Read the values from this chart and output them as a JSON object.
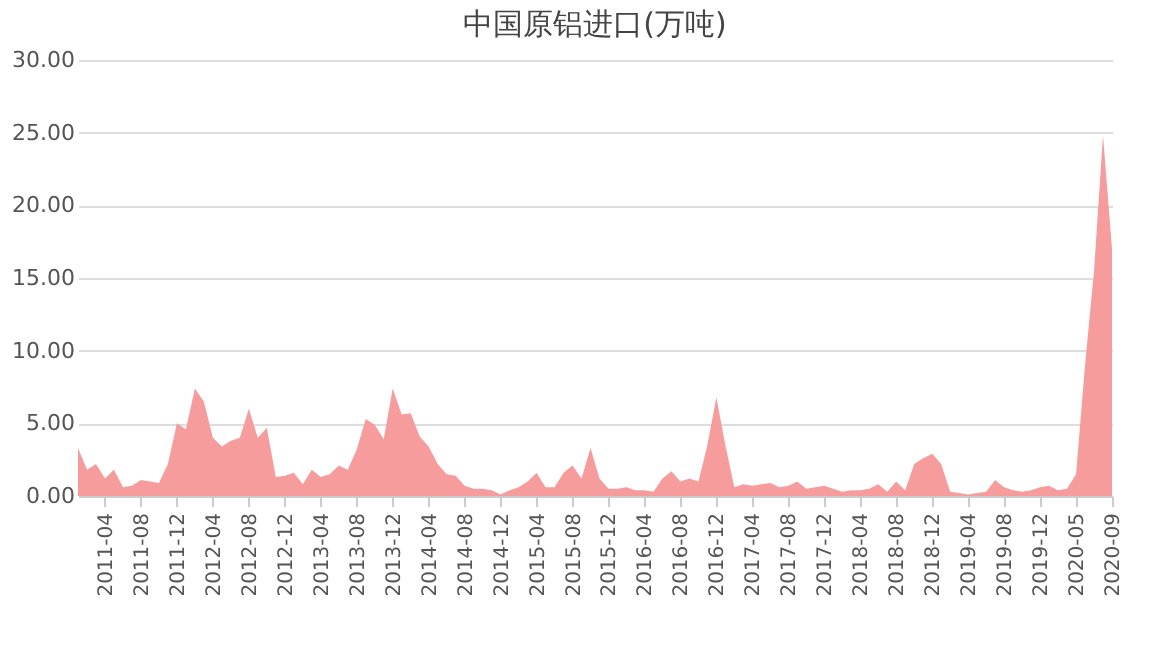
{
  "chart_data": {
    "type": "area",
    "title": "中国原铝进口(万吨)",
    "categories": [
      null,
      null,
      null,
      "2011-04",
      null,
      null,
      null,
      "2011-08",
      null,
      null,
      null,
      "2011-12",
      null,
      null,
      null,
      "2012-04",
      null,
      null,
      null,
      "2012-08",
      null,
      null,
      null,
      "2012-12",
      null,
      null,
      null,
      "2013-04",
      null,
      null,
      null,
      "2013-08",
      null,
      null,
      null,
      "2013-12",
      null,
      null,
      null,
      "2014-04",
      null,
      null,
      null,
      "2014-08",
      null,
      null,
      null,
      "2014-12",
      null,
      null,
      null,
      "2015-04",
      null,
      null,
      null,
      "2015-08",
      null,
      null,
      null,
      "2015-12",
      null,
      null,
      null,
      "2016-04",
      null,
      null,
      null,
      "2016-08",
      null,
      null,
      null,
      "2016-12",
      null,
      null,
      null,
      "2017-04",
      null,
      null,
      null,
      "2017-08",
      null,
      null,
      null,
      "2017-12",
      null,
      null,
      null,
      "2018-04",
      null,
      null,
      null,
      "2018-08",
      null,
      null,
      null,
      "2018-12",
      null,
      null,
      null,
      "2019-04",
      null,
      null,
      null,
      "2019-08",
      null,
      null,
      null,
      "2019-12",
      null,
      null,
      null,
      "2020-05",
      null,
      null,
      null,
      "2020-09"
    ],
    "series": [
      {
        "color": "#f79c9c",
        "values": [
          3.3,
          1.8,
          2.2,
          1.2,
          1.8,
          0.6,
          0.7,
          1.1,
          1.0,
          0.9,
          2.2,
          5.0,
          4.6,
          7.4,
          6.5,
          4.0,
          3.4,
          3.8,
          4.0,
          6.0,
          4.0,
          4.7,
          1.3,
          1.4,
          1.6,
          0.8,
          1.8,
          1.3,
          1.5,
          2.1,
          1.8,
          3.2,
          5.3,
          4.9,
          3.9,
          7.4,
          5.6,
          5.7,
          4.1,
          3.4,
          2.2,
          1.5,
          1.4,
          0.7,
          0.5,
          0.5,
          0.4,
          0.1,
          0.4,
          0.6,
          1.0,
          1.6,
          0.6,
          0.6,
          1.6,
          2.1,
          1.2,
          3.3,
          1.2,
          0.5,
          0.5,
          0.6,
          0.4,
          0.4,
          0.3,
          1.2,
          1.7,
          1.0,
          1.2,
          1.0,
          3.5,
          6.8,
          3.5,
          0.6,
          0.8,
          0.7,
          0.8,
          0.9,
          0.6,
          0.7,
          1.0,
          0.5,
          0.6,
          0.7,
          0.5,
          0.3,
          0.4,
          0.4,
          0.5,
          0.8,
          0.3,
          1.0,
          0.4,
          2.2,
          2.6,
          2.9,
          2.2,
          0.3,
          0.2,
          0.1,
          0.2,
          0.3,
          1.1,
          0.6,
          0.4,
          0.3,
          0.4,
          0.6,
          0.7,
          0.4,
          0.5,
          1.5,
          9.0,
          15.5,
          24.8,
          17.0
        ]
      }
    ],
    "ylim": [
      0,
      30
    ],
    "yticks": [
      {
        "value": 0,
        "label": "0.00"
      },
      {
        "value": 5,
        "label": "5.00"
      },
      {
        "value": 10,
        "label": "10.00"
      },
      {
        "value": 15,
        "label": "15.00"
      },
      {
        "value": 20,
        "label": "20.00"
      },
      {
        "value": 25,
        "label": "25.00"
      },
      {
        "value": 30,
        "label": "30.00"
      }
    ],
    "grid": "y"
  }
}
